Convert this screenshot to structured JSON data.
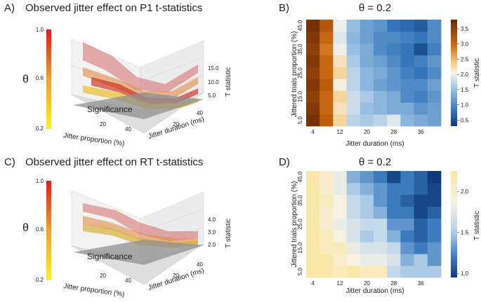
{
  "panels": {
    "A": {
      "letter": "A)",
      "title": "Observed jitter effect on P1 t-statistics",
      "theta_label": "θ",
      "colorbar_ticks": [
        "1.0",
        "0.6",
        "0.2"
      ],
      "z_label": "T statistic",
      "z_ticks": [
        "15.0",
        "10.0",
        "5.0"
      ],
      "x_label": "Jitter proportion (%)",
      "x_ticks": [
        "20",
        "40"
      ],
      "y_label": "Jitter duration (ms)",
      "y_ticks": [
        "20",
        "40"
      ],
      "plane_label": "Significance"
    },
    "B": {
      "letter": "B)",
      "title": "θ = 0.2",
      "x_label": "Jitter duration (ms)",
      "y_label": "Jittered trials proportion (%)",
      "colorbar_label": "T statistic"
    },
    "C": {
      "letter": "C)",
      "title": "Observed jitter effect on RT t-statistics",
      "theta_label": "θ",
      "colorbar_ticks": [
        "1.0",
        "0.6",
        "0.2"
      ],
      "z_label": "T statistic",
      "z_ticks": [
        "4.0",
        "3.0",
        "2.0"
      ],
      "x_label": "Jitter proportion (%)",
      "x_ticks": [
        "20",
        "40"
      ],
      "y_label": "Jitter duration (ms)",
      "y_ticks": [
        "20",
        "40"
      ],
      "plane_label": "Significance"
    },
    "D": {
      "letter": "D)",
      "title": "θ = 0.2",
      "x_label": "Jitter duration (ms)",
      "y_label": "Jittered trials proportion (%)",
      "colorbar_label": "T statistic"
    }
  },
  "colors": {
    "theta_low": "#f5f03c",
    "theta_mid": "#f0a030",
    "theta_high": "#d42020",
    "plane": "#8f8f8f"
  },
  "chart_data": [
    {
      "id": "B",
      "type": "heatmap",
      "title": "θ = 0.2",
      "xlabel": "Jitter duration (ms)",
      "ylabel": "Jittered trials proportion (%)",
      "x": [
        4,
        8,
        12,
        16,
        20,
        24,
        28,
        32,
        36,
        40
      ],
      "x_tick_labels": [
        "4",
        "12",
        "20",
        "28",
        "36"
      ],
      "y": [
        5,
        10,
        15,
        20,
        25,
        30,
        35,
        40,
        45
      ],
      "y_tick_labels": [
        "5.0",
        "15.0",
        "25.0",
        "35.0",
        "45.0"
      ],
      "colorbar_ticks": [
        3.5,
        3.0,
        2.5,
        2.0,
        1.5,
        1.0,
        0.5
      ],
      "clim": [
        0.3,
        3.8
      ],
      "colormap": "brown-orange-white-blue",
      "values": [
        [
          3.7,
          3.1,
          2.3,
          1.7,
          1.6,
          1.7,
          1.9,
          1.4,
          1.3,
          1.2
        ],
        [
          3.6,
          3.0,
          2.2,
          1.8,
          1.5,
          1.4,
          1.3,
          1.3,
          1.1,
          1.2
        ],
        [
          3.5,
          3.0,
          2.3,
          1.8,
          1.6,
          1.4,
          1.3,
          1.0,
          0.9,
          1.1
        ],
        [
          3.6,
          3.1,
          2.1,
          1.7,
          1.4,
          1.2,
          1.1,
          1.0,
          1.0,
          1.2
        ],
        [
          3.5,
          3.0,
          2.3,
          1.7,
          1.4,
          1.3,
          1.1,
          0.9,
          0.8,
          1.0
        ],
        [
          3.6,
          3.0,
          2.2,
          1.6,
          1.3,
          1.2,
          1.0,
          0.8,
          0.9,
          1.1
        ],
        [
          3.5,
          2.9,
          2.0,
          1.5,
          1.3,
          1.0,
          0.9,
          0.8,
          0.5,
          0.9
        ],
        [
          3.6,
          3.0,
          1.9,
          1.4,
          1.2,
          1.0,
          1.0,
          0.9,
          0.8,
          1.0
        ],
        [
          3.7,
          3.2,
          2.0,
          1.5,
          1.2,
          1.1,
          0.8,
          0.7,
          0.6,
          1.0
        ]
      ]
    },
    {
      "id": "D",
      "type": "heatmap",
      "title": "θ = 0.2",
      "xlabel": "Jitter duration (ms)",
      "ylabel": "Jittered trials proportion (%)",
      "x": [
        4,
        8,
        12,
        16,
        20,
        24,
        28,
        32,
        36,
        40
      ],
      "x_tick_labels": [
        "4",
        "12",
        "20",
        "28",
        "36"
      ],
      "y": [
        5,
        10,
        15,
        20,
        25,
        30,
        35,
        40,
        45
      ],
      "y_tick_labels": [
        "5.0",
        "15.0",
        "25.0",
        "35.0",
        "45.0"
      ],
      "colorbar_ticks": [
        2.0,
        1.5,
        1.0
      ],
      "clim": [
        0.95,
        2.25
      ],
      "colormap": "yellow-white-blue",
      "values": [
        [
          2.2,
          2.2,
          2.1,
          2.2,
          2.1,
          2.1,
          1.6,
          1.5,
          1.5,
          1.5
        ],
        [
          2.2,
          2.2,
          2.0,
          1.9,
          1.8,
          1.8,
          1.7,
          1.4,
          1.5,
          1.3
        ],
        [
          2.2,
          2.1,
          2.1,
          1.8,
          1.7,
          1.7,
          1.6,
          1.3,
          1.2,
          1.3
        ],
        [
          2.2,
          2.1,
          1.9,
          1.7,
          1.5,
          1.6,
          1.4,
          1.2,
          1.1,
          1.2
        ],
        [
          2.2,
          2.0,
          1.8,
          1.7,
          1.6,
          1.6,
          1.3,
          1.3,
          1.1,
          1.2
        ],
        [
          2.2,
          2.0,
          1.9,
          1.6,
          1.5,
          1.4,
          1.2,
          1.2,
          1.0,
          1.1
        ],
        [
          2.2,
          2.1,
          1.9,
          1.6,
          1.5,
          1.3,
          1.2,
          1.1,
          1.0,
          1.0
        ],
        [
          2.2,
          2.0,
          1.8,
          1.5,
          1.4,
          1.3,
          1.2,
          1.2,
          1.1,
          1.0
        ],
        [
          2.2,
          2.0,
          1.8,
          1.4,
          1.3,
          1.2,
          1.0,
          1.2,
          1.1,
          0.95
        ]
      ]
    }
  ]
}
